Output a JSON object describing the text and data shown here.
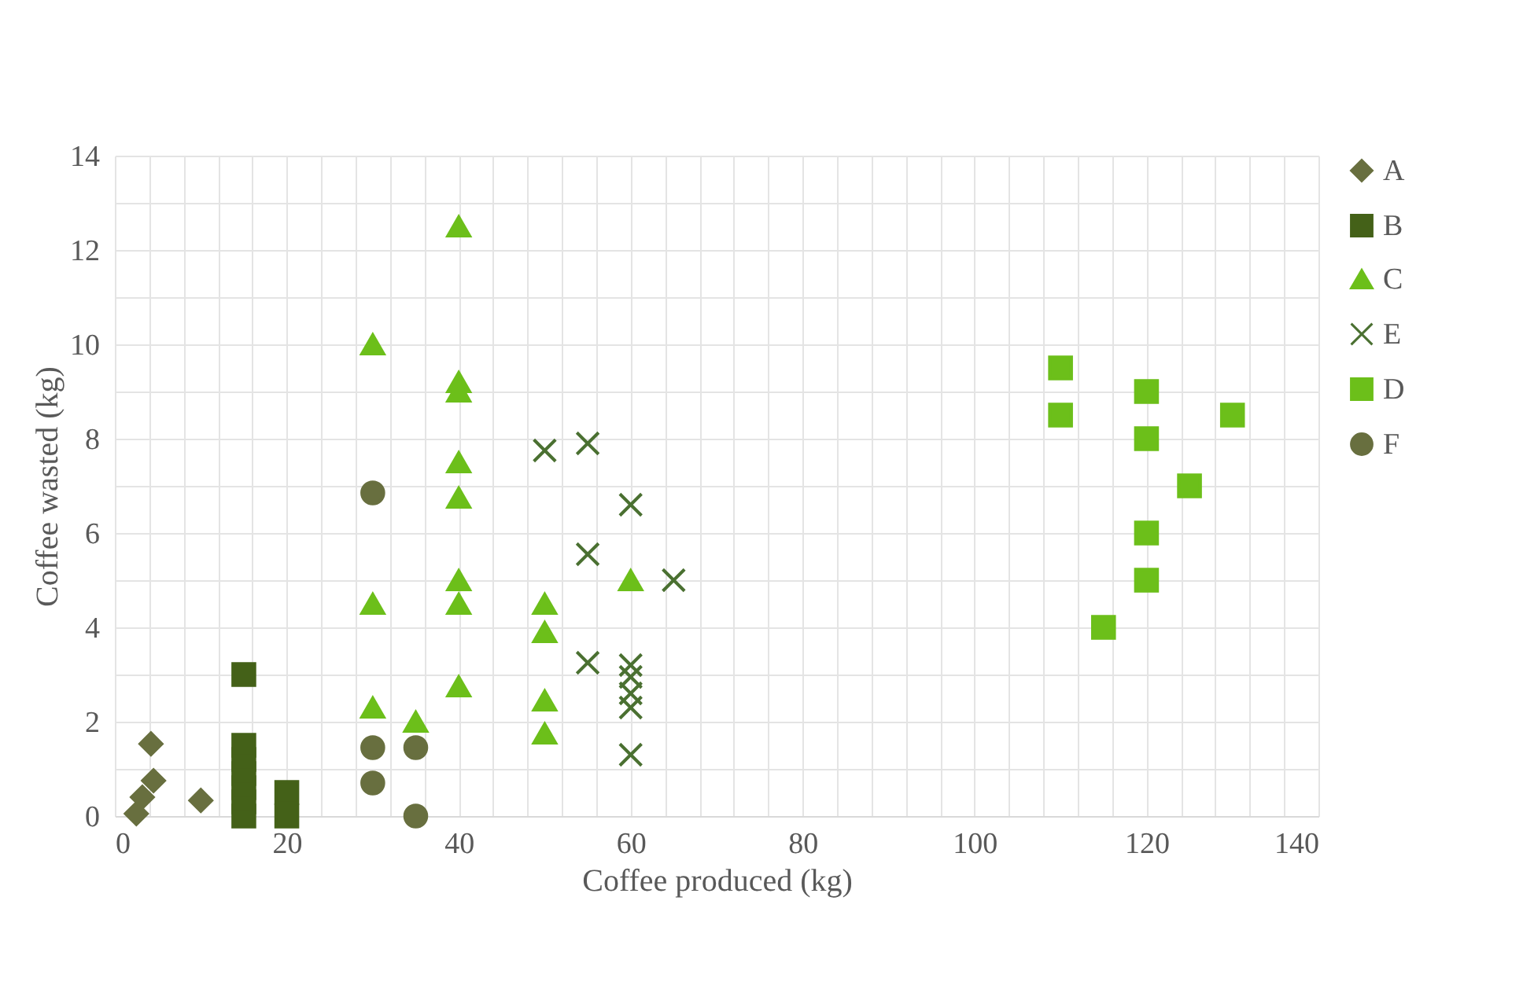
{
  "chart_data": {
    "type": "scatter",
    "xlabel": "Coffee produced (kg)",
    "ylabel": "Coffee wasted (kg)",
    "xlim": [
      0,
      140
    ],
    "ylim": [
      0,
      14
    ],
    "xticks": [
      0,
      {
        "value": 4,
        "label": null
      },
      {
        "value": 8,
        "label": null
      },
      {
        "value": 12,
        "label": null
      },
      {
        "value": 16,
        "label": null
      },
      20,
      {
        "value": 24,
        "label": null
      },
      {
        "value": 28,
        "label": null
      },
      {
        "value": 32,
        "label": null
      },
      {
        "value": 36,
        "label": null
      },
      40,
      {
        "value": 44,
        "label": null
      },
      {
        "value": 48,
        "label": null
      },
      {
        "value": 52,
        "label": null
      },
      {
        "value": 56,
        "label": null
      },
      60,
      {
        "value": 64,
        "label": null
      },
      {
        "value": 68,
        "label": null
      },
      {
        "value": 72,
        "label": null
      },
      {
        "value": 76,
        "label": null
      },
      80,
      {
        "value": 84,
        "label": null
      },
      {
        "value": 88,
        "label": null
      },
      {
        "value": 92,
        "label": null
      },
      {
        "value": 96,
        "label": null
      },
      100,
      {
        "value": 104,
        "label": null
      },
      {
        "value": 108,
        "label": null
      },
      {
        "value": 112,
        "label": null
      },
      {
        "value": 116,
        "label": null
      },
      120,
      {
        "value": 124,
        "label": null
      },
      {
        "value": 128,
        "label": null
      },
      {
        "value": 132,
        "label": null
      },
      {
        "value": 136,
        "label": null
      },
      140
    ],
    "yticks": [
      0,
      {
        "value": 1,
        "label": null
      },
      2,
      {
        "value": 3,
        "label": null
      },
      4,
      {
        "value": 5,
        "label": null
      },
      6,
      {
        "value": 7,
        "label": null
      },
      8,
      {
        "value": 9,
        "label": null
      },
      10,
      {
        "value": 11,
        "label": null
      },
      12,
      {
        "value": 13,
        "label": null
      },
      14
    ],
    "grid": true,
    "legend": "right",
    "series": [
      {
        "name": "A",
        "color": "#686f3f",
        "marker": "diamond",
        "x": [
          2.5,
          3.2,
          4.5,
          4.2,
          10
        ],
        "values": [
          0.05,
          0.4,
          0.75,
          1.53,
          0.33
        ]
      },
      {
        "name": "B",
        "color": "#446118",
        "marker": "square",
        "x": [
          15,
          15,
          15,
          15,
          15,
          15,
          15,
          20,
          20
        ],
        "values": [
          0,
          0.3,
          0.6,
          0.9,
          1.2,
          1.5,
          3.0,
          0,
          0.5
        ]
      },
      {
        "name": "C",
        "color": "#6cbf1a",
        "marker": "triangle",
        "x": [
          40,
          30,
          40,
          40,
          40,
          40,
          40,
          40,
          30,
          50,
          50,
          60,
          40,
          30,
          35,
          50,
          50
        ],
        "values": [
          12.5,
          10,
          9.2,
          9.0,
          7.5,
          6.75,
          5.0,
          4.5,
          4.5,
          4.5,
          3.9,
          5.0,
          2.75,
          2.3,
          2.0,
          2.45,
          1.75
        ]
      },
      {
        "name": "E",
        "color": "#4a7031",
        "marker": "cross",
        "x": [
          50,
          55,
          60,
          55,
          65,
          55,
          60,
          60,
          60,
          60,
          60
        ],
        "values": [
          7.75,
          7.9,
          6.6,
          5.55,
          5.0,
          3.25,
          3.2,
          2.95,
          2.6,
          2.3,
          1.3
        ]
      },
      {
        "name": "D",
        "color": "#6cbf1a",
        "marker": "square",
        "x": [
          110,
          110,
          120,
          120,
          130,
          125,
          120,
          120,
          115
        ],
        "values": [
          9.5,
          8.5,
          9.0,
          8.0,
          8.5,
          7.0,
          6.0,
          5.0,
          4.0
        ]
      },
      {
        "name": "F",
        "color": "#686f3f",
        "marker": "circle",
        "x": [
          30,
          30,
          35,
          30,
          35
        ],
        "values": [
          6.85,
          1.45,
          1.45,
          0.7,
          0.0
        ]
      }
    ]
  }
}
